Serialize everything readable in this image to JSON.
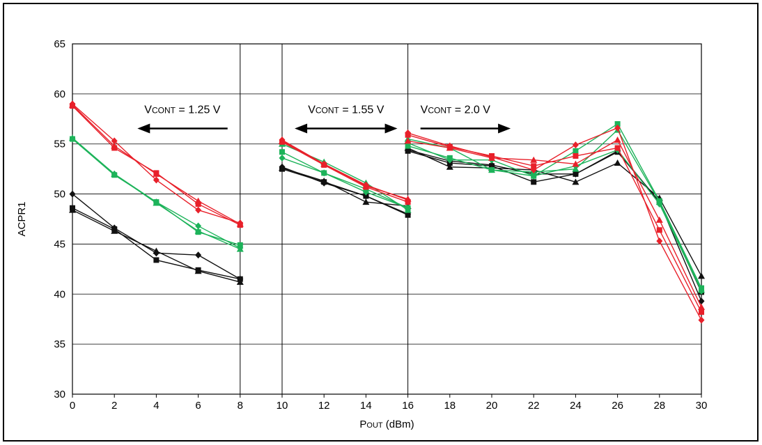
{
  "chart_data": {
    "type": "line",
    "xlabel": "POUT (dBm)",
    "xlabel_main": "P",
    "xlabel_sub": "OUT",
    "xlabel_rest": " (dBm)",
    "ylabel": "ACPR1",
    "xlim": [
      0,
      30
    ],
    "ylim": [
      30,
      65
    ],
    "xticks": [
      0,
      2,
      4,
      6,
      8,
      10,
      12,
      14,
      16,
      18,
      20,
      22,
      24,
      26,
      28,
      30
    ],
    "yticks": [
      30,
      35,
      40,
      45,
      50,
      55,
      60,
      65
    ],
    "grid": true,
    "region_dividers": [
      8,
      10,
      16
    ],
    "colors": {
      "black": "#111111",
      "green": "#1db35a",
      "red": "#e8202a"
    },
    "annotations": [
      {
        "text": "VCONT = 1.25 V",
        "main": "V",
        "sub": "CONT",
        "rest": " = 1.25 V",
        "x_from": 7.4,
        "x_to": 3.1,
        "y": 57.8,
        "arrows": "left"
      },
      {
        "text": "VCONT = 1.55 V",
        "main": "V",
        "sub": "CONT",
        "rest": " = 1.55 V",
        "x_from": 10.6,
        "x_to": 15.5,
        "y": 57.8,
        "arrows": "both"
      },
      {
        "text": "VCONT = 2.0 V",
        "main": "V",
        "sub": "CONT",
        "rest": " = 2.0 V",
        "x_from": 16.6,
        "x_to": 20.9,
        "y": 57.8,
        "arrows": "right"
      }
    ],
    "series": [
      {
        "color": "black",
        "marker": "diamond",
        "points": [
          [
            0,
            50.0
          ],
          [
            2,
            46.6
          ],
          [
            4,
            44.1
          ],
          [
            6,
            43.9
          ],
          [
            8,
            41.5
          ]
        ]
      },
      {
        "color": "black",
        "marker": "square",
        "points": [
          [
            0,
            48.6
          ],
          [
            2,
            46.5
          ],
          [
            4,
            43.4
          ],
          [
            6,
            42.4
          ],
          [
            8,
            41.5
          ]
        ]
      },
      {
        "color": "black",
        "marker": "triangle",
        "points": [
          [
            0,
            48.4
          ],
          [
            2,
            46.3
          ],
          [
            4,
            44.3
          ],
          [
            6,
            42.3
          ],
          [
            8,
            41.2
          ]
        ]
      },
      {
        "color": "green",
        "marker": "diamond",
        "points": [
          [
            0,
            55.5
          ],
          [
            2,
            52.0
          ],
          [
            4,
            49.2
          ],
          [
            6,
            46.8
          ],
          [
            8,
            44.6
          ]
        ]
      },
      {
        "color": "green",
        "marker": "square",
        "points": [
          [
            0,
            55.5
          ],
          [
            2,
            51.9
          ],
          [
            4,
            49.2
          ],
          [
            6,
            46.2
          ],
          [
            8,
            44.9
          ]
        ]
      },
      {
        "color": "green",
        "marker": "triangle",
        "points": [
          [
            0,
            55.6
          ],
          [
            2,
            52.0
          ],
          [
            4,
            49.1
          ],
          [
            6,
            46.3
          ],
          [
            8,
            44.5
          ]
        ]
      },
      {
        "color": "red",
        "marker": "diamond",
        "points": [
          [
            0,
            59.0
          ],
          [
            2,
            55.3
          ],
          [
            4,
            51.4
          ],
          [
            6,
            48.4
          ],
          [
            8,
            47.1
          ]
        ]
      },
      {
        "color": "red",
        "marker": "square",
        "points": [
          [
            0,
            58.8
          ],
          [
            2,
            54.6
          ],
          [
            4,
            52.1
          ],
          [
            6,
            49.0
          ],
          [
            8,
            46.9
          ]
        ]
      },
      {
        "color": "red",
        "marker": "triangle",
        "points": [
          [
            0,
            58.9
          ],
          [
            2,
            54.8
          ],
          [
            4,
            52.0
          ],
          [
            6,
            49.3
          ],
          [
            8,
            47.0
          ]
        ]
      },
      {
        "color": "black",
        "marker": "diamond",
        "points": [
          [
            10,
            52.7
          ],
          [
            12,
            51.1
          ],
          [
            14,
            49.8
          ],
          [
            16,
            48.0
          ]
        ]
      },
      {
        "color": "black",
        "marker": "square",
        "points": [
          [
            10,
            52.5
          ],
          [
            12,
            51.2
          ],
          [
            14,
            49.8
          ],
          [
            16,
            47.9
          ]
        ]
      },
      {
        "color": "black",
        "marker": "triangle",
        "points": [
          [
            10,
            52.6
          ],
          [
            12,
            51.3
          ],
          [
            14,
            49.2
          ],
          [
            16,
            48.8
          ]
        ]
      },
      {
        "color": "green",
        "marker": "diamond",
        "points": [
          [
            10,
            53.6
          ],
          [
            12,
            52.1
          ],
          [
            14,
            50.2
          ],
          [
            16,
            48.6
          ]
        ]
      },
      {
        "color": "green",
        "marker": "square",
        "points": [
          [
            10,
            54.2
          ],
          [
            12,
            52.1
          ],
          [
            14,
            50.5
          ],
          [
            16,
            48.6
          ]
        ]
      },
      {
        "color": "green",
        "marker": "triangle",
        "points": [
          [
            10,
            55.0
          ],
          [
            12,
            53.2
          ],
          [
            14,
            51.1
          ],
          [
            16,
            48.4
          ]
        ]
      },
      {
        "color": "red",
        "marker": "diamond",
        "points": [
          [
            10,
            55.4
          ],
          [
            12,
            53.0
          ],
          [
            14,
            50.9
          ],
          [
            16,
            49.4
          ]
        ]
      },
      {
        "color": "red",
        "marker": "square",
        "points": [
          [
            10,
            55.2
          ],
          [
            12,
            52.9
          ],
          [
            14,
            50.7
          ],
          [
            16,
            49.2
          ]
        ]
      },
      {
        "color": "red",
        "marker": "triangle",
        "points": [
          [
            10,
            55.3
          ],
          [
            12,
            53.0
          ],
          [
            14,
            50.8
          ],
          [
            16,
            49.5
          ]
        ]
      },
      {
        "color": "black",
        "marker": "diamond",
        "points": [
          [
            16,
            54.4
          ],
          [
            18,
            53.3
          ],
          [
            20,
            52.9
          ],
          [
            22,
            52.0
          ],
          [
            24,
            52.0
          ],
          [
            26,
            54.3
          ],
          [
            28,
            49.2
          ],
          [
            30,
            39.3
          ]
        ]
      },
      {
        "color": "black",
        "marker": "square",
        "points": [
          [
            16,
            54.3
          ],
          [
            18,
            53.1
          ],
          [
            20,
            52.8
          ],
          [
            22,
            51.2
          ],
          [
            24,
            52.0
          ],
          [
            26,
            54.2
          ],
          [
            28,
            49.2
          ],
          [
            30,
            40.2
          ]
        ]
      },
      {
        "color": "black",
        "marker": "triangle",
        "points": [
          [
            16,
            54.6
          ],
          [
            18,
            52.7
          ],
          [
            20,
            52.6
          ],
          [
            22,
            52.4
          ],
          [
            24,
            51.2
          ],
          [
            26,
            53.1
          ],
          [
            28,
            49.6
          ],
          [
            30,
            41.8
          ]
        ]
      },
      {
        "color": "green",
        "marker": "diamond",
        "points": [
          [
            16,
            55.1
          ],
          [
            18,
            53.4
          ],
          [
            20,
            53.4
          ],
          [
            22,
            51.8
          ],
          [
            24,
            52.8
          ],
          [
            26,
            54.4
          ],
          [
            28,
            49.0
          ],
          [
            30,
            40.3
          ]
        ]
      },
      {
        "color": "green",
        "marker": "square",
        "points": [
          [
            16,
            54.8
          ],
          [
            18,
            53.6
          ],
          [
            20,
            52.4
          ],
          [
            22,
            51.8
          ],
          [
            24,
            54.3
          ],
          [
            26,
            57.0
          ],
          [
            28,
            49.3
          ],
          [
            30,
            40.6
          ]
        ]
      },
      {
        "color": "green",
        "marker": "triangle",
        "points": [
          [
            16,
            55.5
          ],
          [
            18,
            54.6
          ],
          [
            20,
            52.4
          ],
          [
            22,
            52.2
          ],
          [
            24,
            52.5
          ],
          [
            26,
            56.4
          ],
          [
            28,
            49.2
          ],
          [
            30,
            40.4
          ]
        ]
      },
      {
        "color": "red",
        "marker": "diamond",
        "points": [
          [
            16,
            56.1
          ],
          [
            18,
            54.8
          ],
          [
            20,
            53.7
          ],
          [
            22,
            52.4
          ],
          [
            24,
            54.9
          ],
          [
            26,
            56.6
          ],
          [
            28,
            45.3
          ],
          [
            30,
            37.4
          ]
        ]
      },
      {
        "color": "red",
        "marker": "square",
        "points": [
          [
            16,
            55.9
          ],
          [
            18,
            54.7
          ],
          [
            20,
            53.8
          ],
          [
            22,
            52.8
          ],
          [
            24,
            53.8
          ],
          [
            26,
            54.6
          ],
          [
            28,
            46.4
          ],
          [
            30,
            38.2
          ]
        ]
      },
      {
        "color": "red",
        "marker": "triangle",
        "points": [
          [
            16,
            55.3
          ],
          [
            18,
            54.6
          ],
          [
            20,
            53.6
          ],
          [
            22,
            53.4
          ],
          [
            24,
            53.0
          ],
          [
            26,
            55.4
          ],
          [
            28,
            47.4
          ],
          [
            30,
            38.7
          ]
        ]
      }
    ]
  }
}
